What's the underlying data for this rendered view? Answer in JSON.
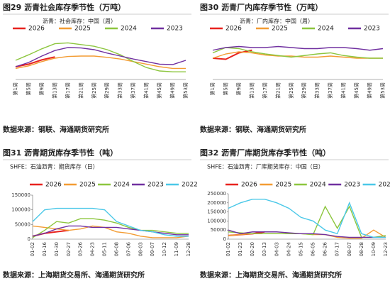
{
  "chart_data": [
    {
      "type": "line",
      "title": "图29  沥青社会库存季节性（万吨）",
      "subtitle": "沥青：社会库存：中国（周）",
      "source": "数据来源：钢联、海通期货研究所",
      "categories": [
        "第1周",
        "第5周",
        "第9周",
        "第13周",
        "第17周",
        "第21周",
        "第25周",
        "第29周",
        "第33周",
        "第37周",
        "第41周",
        "第45周",
        "第49周",
        "第53周"
      ],
      "ylim": [
        0,
        100
      ],
      "series": [
        {
          "name": "2026",
          "color": "#e8231f",
          "values": [
            30,
            36,
            46,
            53,
            null,
            null,
            null,
            null,
            null,
            null,
            null,
            null,
            null,
            null
          ]
        },
        {
          "name": "2025",
          "color": "#f39c33",
          "values": [
            26,
            32,
            42,
            50,
            54,
            55,
            55,
            52,
            48,
            42,
            36,
            30,
            26,
            26
          ]
        },
        {
          "name": "2024",
          "color": "#8dc63f",
          "values": [
            45,
            58,
            72,
            84,
            86,
            82,
            78,
            70,
            58,
            42,
            28,
            20,
            18,
            18
          ]
        },
        {
          "name": "2023",
          "color": "#7030a0",
          "values": [
            30,
            40,
            55,
            68,
            75,
            74,
            70,
            62,
            55,
            48,
            42,
            36,
            35,
            45
          ]
        }
      ]
    },
    {
      "type": "line",
      "title": "图30  沥青厂内库存季节性（万吨）",
      "subtitle": "沥青：厂内库存：中国（周）",
      "source": "数据来源：钢联、海通期货研究所",
      "categories": [
        "第1周",
        "第5周",
        "第9周",
        "第13周",
        "第17周",
        "第21周",
        "第25周",
        "第29周",
        "第33周",
        "第37周",
        "第41周",
        "第45周",
        "第49周",
        "第53周"
      ],
      "ylim": [
        0,
        80
      ],
      "series": [
        {
          "name": "2026",
          "color": "#e8231f",
          "values": [
            40,
            38,
            50,
            55,
            null,
            null,
            null,
            null,
            null,
            null,
            null,
            null,
            null,
            null
          ]
        },
        {
          "name": "2025",
          "color": "#f39c33",
          "values": [
            40,
            48,
            52,
            50,
            46,
            44,
            44,
            42,
            42,
            44,
            42,
            40,
            40,
            40
          ]
        },
        {
          "name": "2024",
          "color": "#8dc63f",
          "values": [
            50,
            60,
            58,
            52,
            48,
            45,
            42,
            45,
            48,
            50,
            45,
            42,
            40,
            40
          ]
        },
        {
          "name": "2023",
          "color": "#7030a0",
          "values": [
            55,
            60,
            62,
            60,
            60,
            62,
            60,
            58,
            58,
            60,
            60,
            58,
            55,
            58
          ]
        }
      ]
    },
    {
      "type": "line",
      "title": "图31  沥青期货库存季节性（吨）",
      "subtitle": "SHFE：石油沥青：期货库存（日）",
      "source": "数据来源：上海期货交易所、海通期货研究所",
      "categories": [
        "01-02",
        "01-16",
        "01-30",
        "02-27",
        "03-26",
        "04-23",
        "05-11",
        "06-08",
        "07-06",
        "08-03",
        "09-07",
        "10-12",
        "11-09",
        "12-28"
      ],
      "ylim": [
        0,
        150000
      ],
      "yticks": [
        0,
        50000,
        100000,
        150000
      ],
      "series": [
        {
          "name": "2026",
          "color": "#e8231f",
          "values": [
            10000,
            20000,
            25000,
            30000,
            null,
            null,
            null,
            null,
            null,
            null,
            null,
            null,
            null,
            null
          ]
        },
        {
          "name": "2025",
          "color": "#f39c33",
          "values": [
            45000,
            40000,
            35000,
            30000,
            35000,
            45000,
            40000,
            25000,
            20000,
            10000,
            5000,
            5000,
            5000,
            10000
          ]
        },
        {
          "name": "2024",
          "color": "#8dc63f",
          "values": [
            5000,
            30000,
            60000,
            55000,
            70000,
            70000,
            65000,
            55000,
            40000,
            30000,
            30000,
            25000,
            20000,
            20000
          ]
        },
        {
          "name": "2023",
          "color": "#7030a0",
          "values": [
            10000,
            20000,
            35000,
            45000,
            45000,
            40000,
            40000,
            40000,
            35000,
            30000,
            25000,
            20000,
            15000,
            15000
          ]
        },
        {
          "name": "2022",
          "color": "#4bc8e8",
          "values": [
            60000,
            100000,
            105000,
            105000,
            105000,
            105000,
            100000,
            60000,
            45000,
            30000,
            25000,
            15000,
            10000,
            10000
          ]
        }
      ]
    },
    {
      "type": "line",
      "title": "图32  沥青厂库期货库存季节性（吨）",
      "subtitle": "SHFE：石油沥青：厂库期货库存：中国（日）",
      "source": "数据来源：上海期货交易所、海通期货研究所",
      "categories": [
        "01-02",
        "01-23",
        "02-20",
        "03-13",
        "04-03",
        "04-24",
        "05-15",
        "06-05",
        "06-26",
        "07-17",
        "08-07",
        "08-28",
        "10-09",
        "12-23"
      ],
      "ylim": [
        0,
        250000
      ],
      "yticks": [
        0,
        50000,
        100000,
        150000,
        200000,
        250000
      ],
      "series": [
        {
          "name": "2026",
          "color": "#e8231f",
          "values": [
            20000,
            25000,
            30000,
            40000,
            null,
            null,
            null,
            null,
            null,
            null,
            null,
            null,
            null,
            null
          ]
        },
        {
          "name": "2025",
          "color": "#f39c33",
          "values": [
            20000,
            25000,
            30000,
            30000,
            30000,
            30000,
            30000,
            25000,
            25000,
            10000,
            5000,
            5000,
            50000,
            10000
          ]
        },
        {
          "name": "2024",
          "color": "#8dc63f",
          "values": [
            40000,
            35000,
            30000,
            30000,
            30000,
            30000,
            30000,
            25000,
            180000,
            60000,
            180000,
            10000,
            10000,
            20000
          ]
        },
        {
          "name": "2023",
          "color": "#7030a0",
          "values": [
            50000,
            30000,
            40000,
            40000,
            40000,
            35000,
            30000,
            30000,
            25000,
            15000,
            10000,
            10000,
            10000,
            10000
          ]
        },
        {
          "name": "2022",
          "color": "#4bc8e8",
          "values": [
            170000,
            200000,
            220000,
            220000,
            200000,
            170000,
            120000,
            100000,
            50000,
            30000,
            200000,
            30000,
            10000,
            10000
          ]
        }
      ]
    }
  ]
}
